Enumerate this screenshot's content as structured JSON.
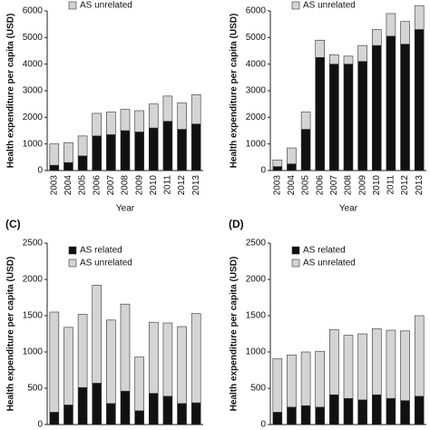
{
  "chart_data": [
    {
      "type": "bar",
      "stacked": true,
      "y_label": "Health expenditure per capita (USD)",
      "x_label": "Year",
      "categories": [
        "2003",
        "2004",
        "2005",
        "2006",
        "2007",
        "2008",
        "2009",
        "2010",
        "2011",
        "2012",
        "2013"
      ],
      "series": [
        {
          "color": "#111111",
          "values": [
            200,
            300,
            550,
            1300,
            1350,
            1500,
            1450,
            1600,
            1850,
            1550,
            1750
          ]
        },
        {
          "name": "AS unrelated",
          "color": "#d4d4d4",
          "values": [
            800,
            750,
            750,
            850,
            850,
            800,
            800,
            900,
            950,
            1000,
            1100
          ]
        }
      ],
      "ylim": [
        0,
        6000
      ],
      "yticks": [
        0,
        1000,
        2000,
        3000,
        4000,
        5000,
        6000
      ]
    },
    {
      "type": "bar",
      "stacked": true,
      "y_label": "Health expenditure per capita (USD)",
      "x_label": "Year",
      "categories": [
        "2003",
        "2004",
        "2005",
        "2006",
        "2007",
        "2008",
        "2009",
        "2010",
        "2011",
        "2012",
        "2013"
      ],
      "series": [
        {
          "color": "#111111",
          "values": [
            150,
            250,
            1550,
            4250,
            4000,
            4000,
            4100,
            4700,
            5050,
            4750,
            5300
          ]
        },
        {
          "name": "AS unrelated",
          "color": "#d4d4d4",
          "values": [
            250,
            600,
            650,
            650,
            350,
            300,
            600,
            600,
            850,
            850,
            900
          ]
        }
      ],
      "ylim": [
        0,
        6000
      ],
      "yticks": [
        0,
        1000,
        2000,
        3000,
        4000,
        5000,
        6000
      ]
    },
    {
      "type": "bar",
      "stacked": true,
      "panel_label": "(C)",
      "y_label": "Health expenditure per capita (USD)",
      "categories": [
        null,
        null,
        null,
        null,
        null,
        null,
        null,
        null,
        null,
        null,
        null
      ],
      "series": [
        {
          "name": "AS related",
          "color": "#111111",
          "values": [
            170,
            270,
            510,
            570,
            290,
            460,
            190,
            430,
            390,
            290,
            300
          ]
        },
        {
          "name": "AS unrelated",
          "color": "#d4d4d4",
          "values": [
            1380,
            1070,
            1010,
            1350,
            1150,
            1200,
            740,
            980,
            1010,
            1060,
            1230
          ]
        }
      ],
      "ylim": [
        0,
        2500
      ],
      "yticks": [
        0,
        500,
        1000,
        1500,
        2000,
        2500
      ]
    },
    {
      "type": "bar",
      "stacked": true,
      "panel_label": "(D)",
      "y_label": "Health expenditure per capita (USD)",
      "categories": [
        null,
        null,
        null,
        null,
        null,
        null,
        null,
        null,
        null,
        null,
        null
      ],
      "series": [
        {
          "name": "AS related",
          "color": "#111111",
          "values": [
            170,
            240,
            260,
            240,
            410,
            360,
            340,
            410,
            360,
            330,
            390
          ]
        },
        {
          "name": "AS unrelated",
          "color": "#d4d4d4",
          "values": [
            740,
            720,
            740,
            770,
            900,
            870,
            910,
            910,
            940,
            960,
            1110
          ]
        }
      ],
      "ylim": [
        0,
        2500
      ],
      "yticks": [
        0,
        500,
        1000,
        1500,
        2000,
        2500
      ]
    }
  ]
}
